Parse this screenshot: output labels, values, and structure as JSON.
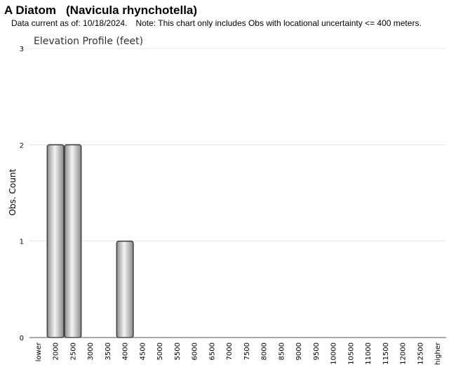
{
  "header": {
    "common_name": "A Diatom",
    "scientific_name": "(Navicula rhynchotella)",
    "data_current": "Data current as of: 10/18/2024.",
    "note": "Note: This chart only includes Obs with locational uncertainty <= 400 meters."
  },
  "chart_data": {
    "type": "bar",
    "title": "Elevation Profile (feet)",
    "xlabel": "",
    "ylabel": "Obs. Count",
    "ylim": [
      0,
      3
    ],
    "yticks": [
      0,
      1,
      2,
      3
    ],
    "grid": true,
    "legend": "none",
    "bar_color": "#c8c8c8",
    "categories": [
      "lower",
      "2000",
      "2500",
      "3000",
      "3500",
      "4000",
      "4500",
      "5000",
      "5500",
      "6000",
      "6500",
      "7000",
      "7500",
      "8000",
      "8500",
      "9000",
      "9500",
      "10000",
      "10500",
      "11000",
      "11500",
      "12000",
      "12500",
      "higher"
    ],
    "values": [
      0,
      2,
      2,
      0,
      0,
      1,
      0,
      0,
      0,
      0,
      0,
      0,
      0,
      0,
      0,
      0,
      0,
      0,
      0,
      0,
      0,
      0,
      0,
      0
    ]
  }
}
